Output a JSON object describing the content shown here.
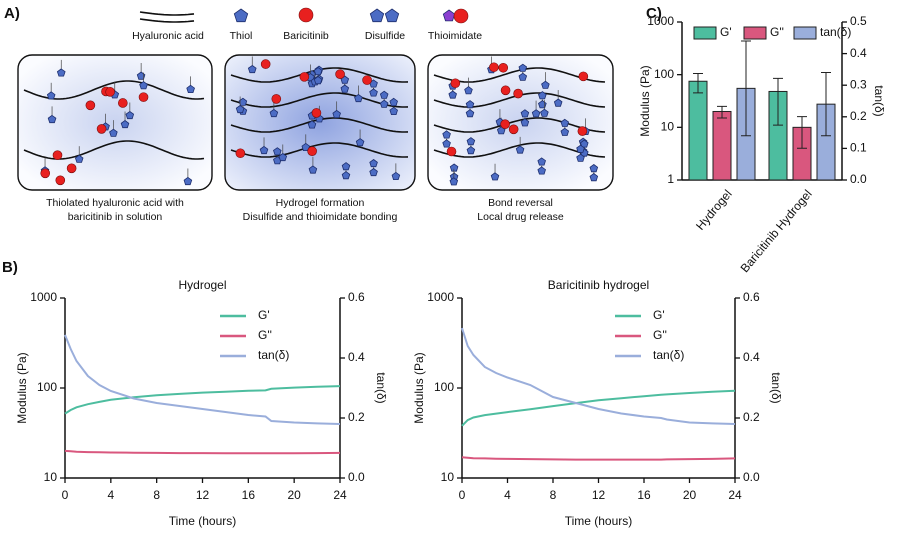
{
  "panels": [
    "A)",
    "B)",
    "C)"
  ],
  "diagram": {
    "legend": [
      "Hyaluronic acid",
      "Thiol",
      "Baricitinib",
      "Disulfide",
      "Thioimidate"
    ],
    "captions": [
      [
        "Thiolated hyaluronic acid with",
        "baricitinib in solution"
      ],
      [
        "Hydrogel formation",
        "Disulfide and thioimidate bonding"
      ],
      [
        "Bond reversal",
        "Local drug release"
      ]
    ]
  },
  "chart_data": [
    {
      "type": "line",
      "title": "Hydrogel",
      "xlabel": "Time (hours)",
      "ylabel": "Modulus (Pa)",
      "y2label": "tan(δ)",
      "x": [
        0,
        0.5,
        1,
        2,
        3,
        4,
        6,
        8,
        10,
        12,
        14,
        16,
        17.5,
        18,
        20,
        22,
        24
      ],
      "xlim": [
        0,
        24
      ],
      "xticks": [
        0,
        4,
        8,
        12,
        16,
        20,
        24
      ],
      "ylim": [
        10,
        1000
      ],
      "yticks": [
        10,
        100,
        1000
      ],
      "yscale": "log",
      "y2lim": [
        0,
        0.6
      ],
      "y2ticks": [
        {
          "value": 0,
          "label": "0.0"
        },
        0.2,
        0.4,
        0.6
      ],
      "legend": "upper right",
      "series": [
        {
          "name": "G'",
          "color": "#4dbd9f",
          "values": [
            52,
            57,
            61,
            66,
            70,
            74,
            79,
            83,
            86,
            89,
            91,
            93,
            94,
            98,
            101,
            103,
            105
          ]
        },
        {
          "name": "G''",
          "color": "#d9577e",
          "values": [
            20,
            19.8,
            19.6,
            19.4,
            19.3,
            19.2,
            19.1,
            19,
            18.9,
            18.9,
            18.8,
            18.8,
            18.8,
            18.8,
            18.8,
            18.9,
            19
          ]
        },
        {
          "name": "tan(δ)",
          "color": "#9aaedb",
          "axis": "y2",
          "values": [
            0.477,
            0.43,
            0.39,
            0.34,
            0.31,
            0.29,
            0.265,
            0.25,
            0.24,
            0.23,
            0.22,
            0.21,
            0.205,
            0.19,
            0.185,
            0.182,
            0.18
          ]
        }
      ]
    },
    {
      "type": "line",
      "title": "Baricitinib hydrogel",
      "xlabel": "Time (hours)",
      "ylabel": "Modulus (Pa)",
      "y2label": "tan(δ)",
      "x": [
        0,
        0.5,
        1,
        2,
        3,
        4,
        6,
        8,
        10,
        12,
        14,
        16,
        17.5,
        18,
        20,
        22,
        24
      ],
      "xlim": [
        0,
        24
      ],
      "xticks": [
        0,
        4,
        8,
        12,
        16,
        20,
        24
      ],
      "ylim": [
        10,
        1000
      ],
      "yticks": [
        10,
        100,
        1000
      ],
      "yscale": "log",
      "y2lim": [
        0,
        0.6
      ],
      "y2ticks": [
        {
          "value": 0,
          "label": "0.0"
        },
        0.2,
        0.4,
        0.6
      ],
      "legend": "upper right",
      "series": [
        {
          "name": "G'",
          "color": "#4dbd9f",
          "values": [
            38,
            44,
            47,
            50,
            52,
            54,
            58,
            63,
            68,
            73,
            77,
            81,
            84,
            85,
            88,
            91,
            93
          ]
        },
        {
          "name": "G''",
          "color": "#d9577e",
          "values": [
            17,
            16.8,
            16.6,
            16.5,
            16.4,
            16.3,
            16.2,
            16.1,
            16,
            16,
            16,
            16,
            16,
            16.1,
            16.2,
            16.3,
            16.5
          ]
        },
        {
          "name": "tan(δ)",
          "color": "#9aaedb",
          "axis": "y2",
          "values": [
            0.5,
            0.44,
            0.41,
            0.37,
            0.35,
            0.335,
            0.31,
            0.27,
            0.25,
            0.23,
            0.215,
            0.205,
            0.2,
            0.195,
            0.185,
            0.182,
            0.18
          ]
        }
      ]
    },
    {
      "type": "bar",
      "ylabel": "Modulus (Pa)",
      "y2label": "tan(δ)",
      "categories": [
        "Hydrogel",
        "Baricitinib Hydrogel"
      ],
      "ylim": [
        1,
        1000
      ],
      "yticks": [
        1,
        10,
        100,
        1000
      ],
      "yscale": "log",
      "y2lim": [
        0,
        0.5
      ],
      "y2ticks": [
        {
          "value": 0,
          "label": "0.0"
        },
        0.1,
        0.2,
        0.3,
        0.4,
        0.5
      ],
      "legend": "upper center",
      "series": [
        {
          "name": "G'",
          "color": "#4dbd9f",
          "values": [
            75,
            48
          ],
          "errors": [
            30,
            37
          ]
        },
        {
          "name": "G''",
          "color": "#d9577e",
          "values": [
            20,
            10
          ],
          "errors": [
            5,
            6
          ]
        },
        {
          "name": "tan(δ)",
          "color": "#9aaedb",
          "axis": "y2",
          "values": [
            0.29,
            0.24
          ],
          "errors": [
            0.15,
            0.1
          ]
        }
      ]
    }
  ]
}
